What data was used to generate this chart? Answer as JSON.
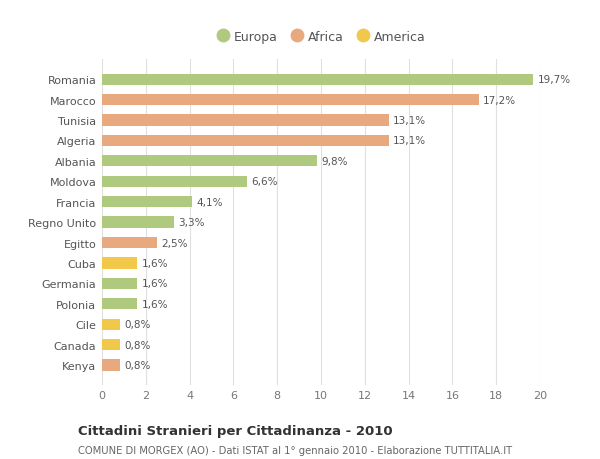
{
  "categories": [
    "Romania",
    "Marocco",
    "Tunisia",
    "Algeria",
    "Albania",
    "Moldova",
    "Francia",
    "Regno Unito",
    "Egitto",
    "Cuba",
    "Germania",
    "Polonia",
    "Cile",
    "Canada",
    "Kenya"
  ],
  "values": [
    19.7,
    17.2,
    13.1,
    13.1,
    9.8,
    6.6,
    4.1,
    3.3,
    2.5,
    1.6,
    1.6,
    1.6,
    0.8,
    0.8,
    0.8
  ],
  "labels": [
    "19,7%",
    "17,2%",
    "13,1%",
    "13,1%",
    "9,8%",
    "6,6%",
    "4,1%",
    "3,3%",
    "2,5%",
    "1,6%",
    "1,6%",
    "1,6%",
    "0,8%",
    "0,8%",
    "0,8%"
  ],
  "colors": [
    "#afc97e",
    "#e8a97e",
    "#e8a97e",
    "#e8a97e",
    "#afc97e",
    "#afc97e",
    "#afc97e",
    "#afc97e",
    "#e8a97e",
    "#f2c84b",
    "#afc97e",
    "#afc97e",
    "#f2c84b",
    "#f2c84b",
    "#e8a97e"
  ],
  "legend_labels": [
    "Europa",
    "Africa",
    "America"
  ],
  "legend_colors": [
    "#afc97e",
    "#e8a97e",
    "#f2c84b"
  ],
  "title": "Cittadini Stranieri per Cittadinanza - 2010",
  "subtitle": "COMUNE DI MORGEX (AO) - Dati ISTAT al 1° gennaio 2010 - Elaborazione TUTTITALIA.IT",
  "xlim": [
    0,
    20
  ],
  "xticks": [
    0,
    2,
    4,
    6,
    8,
    10,
    12,
    14,
    16,
    18,
    20
  ],
  "background_color": "#ffffff",
  "grid_color": "#e0e0e0",
  "bar_height": 0.55
}
